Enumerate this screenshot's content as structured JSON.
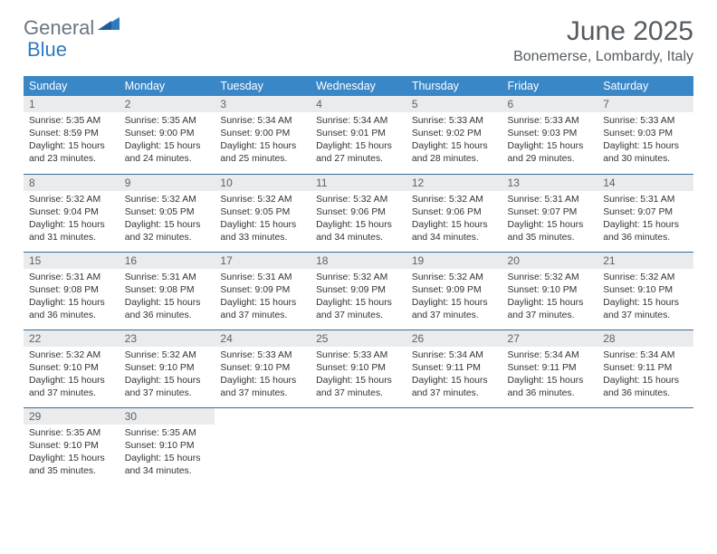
{
  "brand": {
    "name1": "General",
    "name2": "Blue"
  },
  "title": "June 2025",
  "location": "Bonemerse, Lombardy, Italy",
  "colors": {
    "header_bg": "#3a87c7",
    "header_text": "#ffffff",
    "daynum_bg": "#e9ebec",
    "row_border": "#3a6a94",
    "brand_gray": "#6b7680",
    "brand_blue": "#2f7bbf",
    "title_color": "#555b60"
  },
  "weekdays": [
    "Sunday",
    "Monday",
    "Tuesday",
    "Wednesday",
    "Thursday",
    "Friday",
    "Saturday"
  ],
  "weeks": [
    [
      {
        "n": "1",
        "sr": "5:35 AM",
        "ss": "8:59 PM",
        "dl": "15 hours and 23 minutes."
      },
      {
        "n": "2",
        "sr": "5:35 AM",
        "ss": "9:00 PM",
        "dl": "15 hours and 24 minutes."
      },
      {
        "n": "3",
        "sr": "5:34 AM",
        "ss": "9:00 PM",
        "dl": "15 hours and 25 minutes."
      },
      {
        "n": "4",
        "sr": "5:34 AM",
        "ss": "9:01 PM",
        "dl": "15 hours and 27 minutes."
      },
      {
        "n": "5",
        "sr": "5:33 AM",
        "ss": "9:02 PM",
        "dl": "15 hours and 28 minutes."
      },
      {
        "n": "6",
        "sr": "5:33 AM",
        "ss": "9:03 PM",
        "dl": "15 hours and 29 minutes."
      },
      {
        "n": "7",
        "sr": "5:33 AM",
        "ss": "9:03 PM",
        "dl": "15 hours and 30 minutes."
      }
    ],
    [
      {
        "n": "8",
        "sr": "5:32 AM",
        "ss": "9:04 PM",
        "dl": "15 hours and 31 minutes."
      },
      {
        "n": "9",
        "sr": "5:32 AM",
        "ss": "9:05 PM",
        "dl": "15 hours and 32 minutes."
      },
      {
        "n": "10",
        "sr": "5:32 AM",
        "ss": "9:05 PM",
        "dl": "15 hours and 33 minutes."
      },
      {
        "n": "11",
        "sr": "5:32 AM",
        "ss": "9:06 PM",
        "dl": "15 hours and 34 minutes."
      },
      {
        "n": "12",
        "sr": "5:32 AM",
        "ss": "9:06 PM",
        "dl": "15 hours and 34 minutes."
      },
      {
        "n": "13",
        "sr": "5:31 AM",
        "ss": "9:07 PM",
        "dl": "15 hours and 35 minutes."
      },
      {
        "n": "14",
        "sr": "5:31 AM",
        "ss": "9:07 PM",
        "dl": "15 hours and 36 minutes."
      }
    ],
    [
      {
        "n": "15",
        "sr": "5:31 AM",
        "ss": "9:08 PM",
        "dl": "15 hours and 36 minutes."
      },
      {
        "n": "16",
        "sr": "5:31 AM",
        "ss": "9:08 PM",
        "dl": "15 hours and 36 minutes."
      },
      {
        "n": "17",
        "sr": "5:31 AM",
        "ss": "9:09 PM",
        "dl": "15 hours and 37 minutes."
      },
      {
        "n": "18",
        "sr": "5:32 AM",
        "ss": "9:09 PM",
        "dl": "15 hours and 37 minutes."
      },
      {
        "n": "19",
        "sr": "5:32 AM",
        "ss": "9:09 PM",
        "dl": "15 hours and 37 minutes."
      },
      {
        "n": "20",
        "sr": "5:32 AM",
        "ss": "9:10 PM",
        "dl": "15 hours and 37 minutes."
      },
      {
        "n": "21",
        "sr": "5:32 AM",
        "ss": "9:10 PM",
        "dl": "15 hours and 37 minutes."
      }
    ],
    [
      {
        "n": "22",
        "sr": "5:32 AM",
        "ss": "9:10 PM",
        "dl": "15 hours and 37 minutes."
      },
      {
        "n": "23",
        "sr": "5:32 AM",
        "ss": "9:10 PM",
        "dl": "15 hours and 37 minutes."
      },
      {
        "n": "24",
        "sr": "5:33 AM",
        "ss": "9:10 PM",
        "dl": "15 hours and 37 minutes."
      },
      {
        "n": "25",
        "sr": "5:33 AM",
        "ss": "9:10 PM",
        "dl": "15 hours and 37 minutes."
      },
      {
        "n": "26",
        "sr": "5:34 AM",
        "ss": "9:11 PM",
        "dl": "15 hours and 37 minutes."
      },
      {
        "n": "27",
        "sr": "5:34 AM",
        "ss": "9:11 PM",
        "dl": "15 hours and 36 minutes."
      },
      {
        "n": "28",
        "sr": "5:34 AM",
        "ss": "9:11 PM",
        "dl": "15 hours and 36 minutes."
      }
    ],
    [
      {
        "n": "29",
        "sr": "5:35 AM",
        "ss": "9:10 PM",
        "dl": "15 hours and 35 minutes."
      },
      {
        "n": "30",
        "sr": "5:35 AM",
        "ss": "9:10 PM",
        "dl": "15 hours and 34 minutes."
      },
      null,
      null,
      null,
      null,
      null
    ]
  ],
  "labels": {
    "sunrise": "Sunrise:",
    "sunset": "Sunset:",
    "daylight": "Daylight:"
  }
}
